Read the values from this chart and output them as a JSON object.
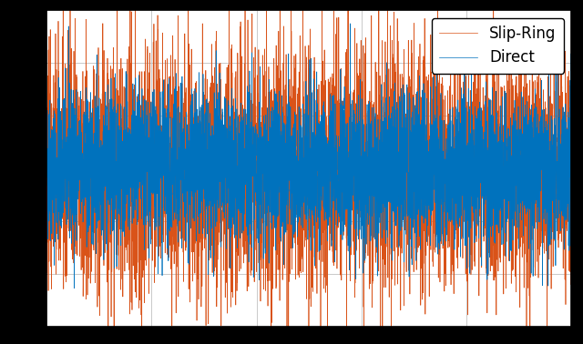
{
  "title": "",
  "xlabel": "",
  "ylabel": "",
  "color_direct": "#0072BD",
  "color_slipring": "#D95319",
  "legend_labels": [
    "Direct",
    "Slip-Ring"
  ],
  "n_points": 5000,
  "seed": 42,
  "background_color": "#ffffff",
  "fig_background": "#000000",
  "figsize": [
    6.4,
    3.78
  ],
  "dpi": 100,
  "grid_color": "#c0c0c0",
  "linewidth_direct": 0.5,
  "linewidth_slipring": 0.5,
  "n_xticks": 5,
  "legend_fontsize": 12,
  "legend_loc": "upper right",
  "direct_std": 0.35,
  "slipring_std": 0.55,
  "ylim": [
    -1.5,
    1.5
  ]
}
